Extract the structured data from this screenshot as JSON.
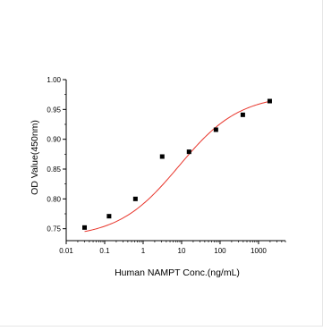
{
  "chart_data": {
    "type": "scatter",
    "title": "",
    "xlabel": "Human NAMPT Conc.(ng/mL)",
    "ylabel": "OD Value(450nm)",
    "xscale": "log",
    "xlim": [
      0.01,
      5000
    ],
    "ylim": [
      0.73,
      1.0
    ],
    "xticks": [
      0.01,
      0.1,
      1,
      10,
      100,
      1000
    ],
    "xtick_labels": [
      "0.01",
      "0.1",
      "1",
      "10",
      "100",
      "1000"
    ],
    "yticks": [
      0.75,
      0.8,
      0.85,
      0.9,
      0.95,
      1.0
    ],
    "ytick_labels": [
      "0.75",
      "0.80",
      "0.85",
      "0.90",
      "0.95",
      "1.00"
    ],
    "grid": false,
    "series": [
      {
        "type": "scatter",
        "marker": "square",
        "color": "#000000",
        "x": [
          0.03,
          0.13,
          0.63,
          3.13,
          15.6,
          78.1,
          390.6,
          1953
        ],
        "y": [
          0.752,
          0.771,
          0.8,
          0.871,
          0.879,
          0.916,
          0.941,
          0.964
        ]
      },
      {
        "type": "line",
        "color": "#e8352b",
        "fit": "4PL",
        "params": {
          "bottom": 0.735,
          "top": 0.975,
          "ec50": 8.5,
          "hill": 0.55
        },
        "x_range": [
          0.03,
          2000
        ]
      }
    ]
  }
}
